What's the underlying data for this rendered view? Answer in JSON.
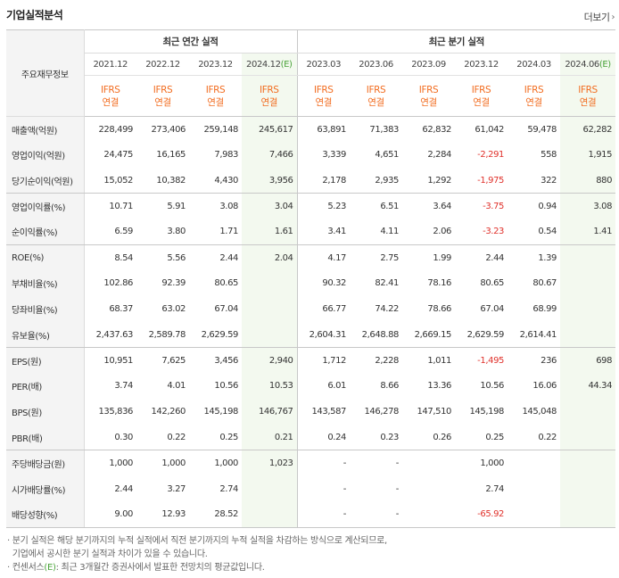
{
  "section_title": "기업실적분석",
  "more_label": "더보기",
  "row_header_label": "주요재무정보",
  "groups": {
    "annual": "최근 연간 실적",
    "quarterly": "최근 분기 실적"
  },
  "periods": [
    {
      "label": "2021.12",
      "est": ""
    },
    {
      "label": "2022.12",
      "est": ""
    },
    {
      "label": "2023.12",
      "est": ""
    },
    {
      "label": "2024.12",
      "est": "(E)"
    },
    {
      "label": "2023.03",
      "est": ""
    },
    {
      "label": "2023.06",
      "est": ""
    },
    {
      "label": "2023.09",
      "est": ""
    },
    {
      "label": "2023.12",
      "est": ""
    },
    {
      "label": "2024.03",
      "est": ""
    },
    {
      "label": "2024.06",
      "est": "(E)"
    }
  ],
  "standard": {
    "line1": "IFRS",
    "line2": "연결"
  },
  "rows": [
    {
      "label": "매출액(억원)",
      "values": [
        "228,499",
        "273,406",
        "259,148",
        "245,617",
        "63,891",
        "71,383",
        "62,832",
        "61,042",
        "59,478",
        "62,282"
      ]
    },
    {
      "label": "영업이익(억원)",
      "values": [
        "24,475",
        "16,165",
        "7,983",
        "7,466",
        "3,339",
        "4,651",
        "2,284",
        "-2,291",
        "558",
        "1,915"
      ]
    },
    {
      "label": "당기순이익(억원)",
      "values": [
        "15,052",
        "10,382",
        "4,430",
        "3,956",
        "2,178",
        "2,935",
        "1,292",
        "-1,975",
        "322",
        "880"
      ]
    },
    {
      "label": "영업이익률(%)",
      "values": [
        "10.71",
        "5.91",
        "3.08",
        "3.04",
        "5.23",
        "6.51",
        "3.64",
        "-3.75",
        "0.94",
        "3.08"
      ]
    },
    {
      "label": "순이익률(%)",
      "values": [
        "6.59",
        "3.80",
        "1.71",
        "1.61",
        "3.41",
        "4.11",
        "2.06",
        "-3.23",
        "0.54",
        "1.41"
      ]
    },
    {
      "label": "ROE(%)",
      "values": [
        "8.54",
        "5.56",
        "2.44",
        "2.04",
        "4.17",
        "2.75",
        "1.99",
        "2.44",
        "1.39",
        ""
      ]
    },
    {
      "label": "부채비율(%)",
      "values": [
        "102.86",
        "92.39",
        "80.65",
        "",
        "90.32",
        "82.41",
        "78.16",
        "80.65",
        "80.67",
        ""
      ]
    },
    {
      "label": "당좌비율(%)",
      "values": [
        "68.37",
        "63.02",
        "67.04",
        "",
        "66.77",
        "74.22",
        "78.66",
        "67.04",
        "68.99",
        ""
      ]
    },
    {
      "label": "유보율(%)",
      "values": [
        "2,437.63",
        "2,589.78",
        "2,629.59",
        "",
        "2,604.31",
        "2,648.88",
        "2,669.15",
        "2,629.59",
        "2,614.41",
        ""
      ]
    },
    {
      "label": "EPS(원)",
      "values": [
        "10,951",
        "7,625",
        "3,456",
        "2,940",
        "1,712",
        "2,228",
        "1,011",
        "-1,495",
        "236",
        "698"
      ]
    },
    {
      "label": "PER(배)",
      "values": [
        "3.74",
        "4.01",
        "10.56",
        "10.53",
        "6.01",
        "8.66",
        "13.36",
        "10.56",
        "16.06",
        "44.34"
      ]
    },
    {
      "label": "BPS(원)",
      "values": [
        "135,836",
        "142,260",
        "145,198",
        "146,767",
        "143,587",
        "146,278",
        "147,510",
        "145,198",
        "145,048",
        ""
      ]
    },
    {
      "label": "PBR(배)",
      "values": [
        "0.30",
        "0.22",
        "0.25",
        "0.21",
        "0.24",
        "0.23",
        "0.26",
        "0.25",
        "0.22",
        ""
      ]
    },
    {
      "label": "주당배당금(원)",
      "values": [
        "1,000",
        "1,000",
        "1,000",
        "1,023",
        "-",
        "-",
        "",
        "1,000",
        "",
        ""
      ]
    },
    {
      "label": "시가배당률(%)",
      "values": [
        "2.44",
        "3.27",
        "2.74",
        "",
        "-",
        "-",
        "",
        "2.74",
        "",
        ""
      ]
    },
    {
      "label": "배당성향(%)",
      "values": [
        "9.00",
        "12.93",
        "28.52",
        "",
        "-",
        "-",
        "",
        "-65.92",
        "",
        ""
      ]
    }
  ],
  "notes": {
    "line1": "분기 실적은 해당 분기까지의 누적 실적에서 직전 분기까지의 누적 실적을 차감하는 방식으로 계산되므로,",
    "line2": "기업에서 공시한 분기 실적과 차이가 있을 수 있습니다.",
    "line3_prefix": "컨센서스",
    "line3_mark": "(E)",
    "line3_suffix": ": 최근 3개월간 증권사에서 발표한 전망치의 평균값입니다."
  },
  "colors": {
    "accent_orange": "#f26d21",
    "estimate_green": "#4aa33a",
    "negative_red": "#e0312b"
  }
}
